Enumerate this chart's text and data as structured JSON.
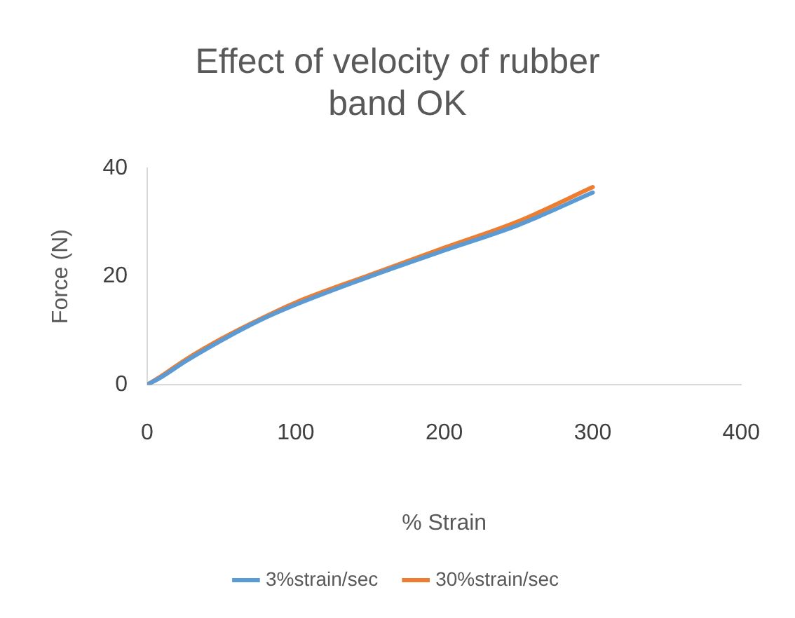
{
  "chart_data": {
    "type": "line",
    "title": "Effect of velocity of rubber band OK",
    "xlabel": "% Strain",
    "ylabel": "Force (N)",
    "x": [
      0,
      10,
      25,
      50,
      75,
      100,
      150,
      200,
      250,
      300
    ],
    "series": [
      {
        "name": "3%strain/sec",
        "color": "#5b9bd5",
        "values": [
          0,
          1.5,
          4.2,
          8.2,
          11.8,
          14.8,
          20,
          24.8,
          29.5,
          35.5
        ]
      },
      {
        "name": "30%strain/sec",
        "color": "#ed7d31",
        "values": [
          0,
          1.7,
          4.5,
          8.5,
          12,
          15.2,
          20.3,
          25.3,
          30.2,
          36.5
        ]
      }
    ],
    "xlim": [
      0,
      400
    ],
    "xticks": [
      0,
      100,
      200,
      300,
      400
    ],
    "ylim": [
      0,
      40
    ],
    "yticks": [
      0,
      20,
      40
    ],
    "grid": false,
    "legend": "bottom",
    "marker": "none",
    "line_style": "solid"
  }
}
